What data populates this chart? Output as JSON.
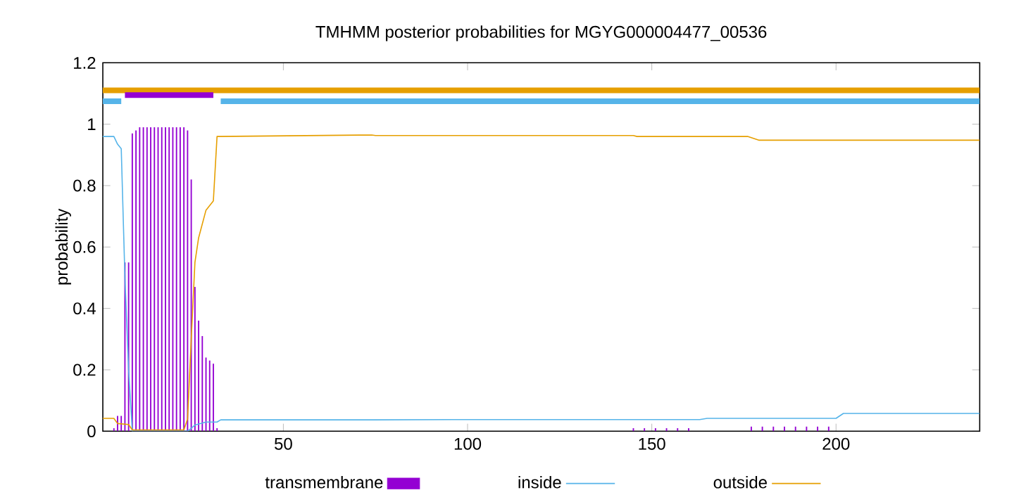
{
  "chart_data": {
    "type": "line",
    "title": "TMHMM posterior probabilities for MGYG000004477_00536",
    "ylabel": "probability",
    "xlim": [
      1,
      239
    ],
    "ylim": [
      0,
      1.2
    ],
    "xticks": [
      50,
      100,
      150,
      200
    ],
    "yticks": [
      0,
      0.2,
      0.4,
      0.6,
      0.8,
      1,
      1.2
    ],
    "legend": "bottom",
    "series": [
      {
        "color": "#e69f00",
        "x": [
          1,
          239
        ],
        "values": [
          1.11,
          1.11
        ]
      },
      {
        "color": "#56b4e9",
        "x": [
          1,
          6,
          20,
          33,
          239
        ],
        "values": [
          1.075,
          1.075,
          null,
          1.075,
          1.075
        ]
      },
      {
        "color": "#9400d3",
        "x": [
          7,
          31
        ],
        "values": [
          1.095,
          1.095
        ]
      },
      {
        "name": "transmembrane",
        "type": "bar",
        "color": "#9400d3",
        "x": [
          4,
          5,
          6,
          7,
          8,
          9,
          10,
          11,
          12,
          13,
          14,
          15,
          16,
          17,
          18,
          19,
          20,
          21,
          22,
          23,
          24,
          25,
          26,
          27,
          28,
          29,
          30,
          31,
          32,
          145,
          148,
          151,
          154,
          157,
          160,
          177,
          180,
          183,
          186,
          189,
          192,
          195,
          198
        ],
        "values": [
          0.01,
          0.05,
          0.05,
          0.55,
          0.55,
          0.97,
          0.98,
          0.99,
          0.99,
          0.99,
          0.99,
          0.99,
          0.99,
          0.99,
          0.99,
          0.99,
          0.99,
          0.99,
          0.99,
          0.99,
          0.98,
          0.82,
          0.47,
          0.36,
          0.31,
          0.24,
          0.23,
          0.22,
          0.01,
          0.01,
          0.01,
          0.01,
          0.01,
          0.01,
          0.01,
          0.015,
          0.015,
          0.015,
          0.015,
          0.015,
          0.015,
          0.015,
          0.015
        ]
      },
      {
        "name": "inside",
        "color": "#56b4e9",
        "x": [
          1,
          4,
          5,
          6,
          7,
          8,
          9,
          24,
          26,
          29,
          32,
          33,
          74,
          96,
          163,
          165,
          200,
          202,
          239
        ],
        "values": [
          0.96,
          0.96,
          0.935,
          0.92,
          0.5,
          0.2,
          0.0,
          0.0,
          0.02,
          0.03,
          0.03,
          0.037,
          0.037,
          0.038,
          0.038,
          0.042,
          0.042,
          0.058,
          0.058
        ]
      },
      {
        "name": "outside",
        "color": "#e69f00",
        "x": [
          1,
          4,
          5,
          8,
          9,
          23,
          24,
          25,
          26,
          27,
          29,
          31,
          32,
          74,
          75,
          145,
          146,
          176,
          179,
          239
        ],
        "values": [
          0.042,
          0.042,
          0.025,
          0.022,
          0.004,
          0.004,
          0.04,
          0.3,
          0.55,
          0.63,
          0.72,
          0.75,
          0.96,
          0.965,
          0.963,
          0.963,
          0.96,
          0.96,
          0.948,
          0.948
        ]
      }
    ]
  }
}
